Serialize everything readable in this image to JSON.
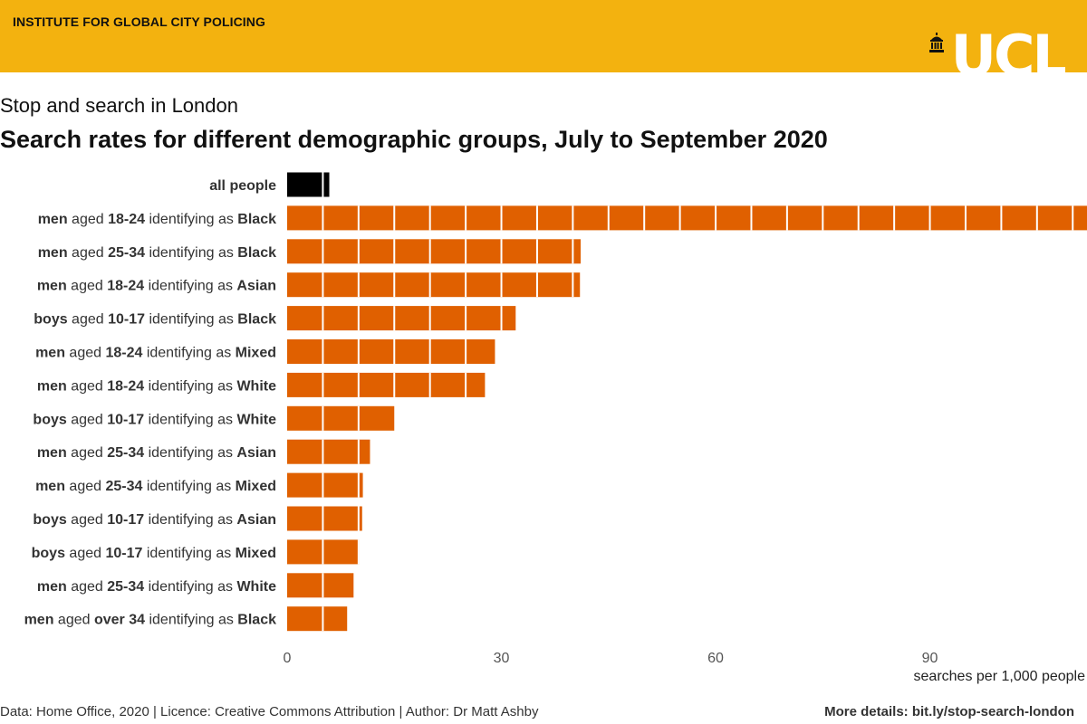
{
  "header": {
    "institute": "INSTITUTE FOR GLOBAL CITY POLICING",
    "logo_text": "UCL",
    "background_color": "#f3b20f"
  },
  "chart_data": {
    "type": "bar",
    "orientation": "horizontal",
    "subtitle": "Stop and search in London",
    "title": "Search rates for different demographic groups, July to September 2020",
    "xlabel": "searches per 1,000 people",
    "xlim": [
      0,
      112
    ],
    "xticks": [
      0,
      30,
      60,
      90
    ],
    "grid": false,
    "categories": [
      {
        "parts": [
          {
            "t": "all people",
            "b": true
          }
        ],
        "value": 5.9,
        "color": "#000000"
      },
      {
        "parts": [
          {
            "t": "men",
            "b": true
          },
          {
            "t": " aged ",
            "b": false
          },
          {
            "t": "18-24",
            "b": true
          },
          {
            "t": " identifying as ",
            "b": false
          },
          {
            "t": "Black",
            "b": true
          }
        ],
        "value": 112,
        "color": "#e06000"
      },
      {
        "parts": [
          {
            "t": "men",
            "b": true
          },
          {
            "t": " aged ",
            "b": false
          },
          {
            "t": "25-34",
            "b": true
          },
          {
            "t": " identifying as ",
            "b": false
          },
          {
            "t": "Black",
            "b": true
          }
        ],
        "value": 41.1,
        "color": "#e06000"
      },
      {
        "parts": [
          {
            "t": "men",
            "b": true
          },
          {
            "t": " aged ",
            "b": false
          },
          {
            "t": "18-24",
            "b": true
          },
          {
            "t": " identifying as ",
            "b": false
          },
          {
            "t": "Asian",
            "b": true
          }
        ],
        "value": 41.0,
        "color": "#e06000"
      },
      {
        "parts": [
          {
            "t": "boys",
            "b": true
          },
          {
            "t": " aged ",
            "b": false
          },
          {
            "t": "10-17",
            "b": true
          },
          {
            "t": " identifying as ",
            "b": false
          },
          {
            "t": "Black",
            "b": true
          }
        ],
        "value": 32.0,
        "color": "#e06000"
      },
      {
        "parts": [
          {
            "t": "men",
            "b": true
          },
          {
            "t": " aged ",
            "b": false
          },
          {
            "t": "18-24",
            "b": true
          },
          {
            "t": " identifying as ",
            "b": false
          },
          {
            "t": "Mixed",
            "b": true
          }
        ],
        "value": 29.1,
        "color": "#e06000"
      },
      {
        "parts": [
          {
            "t": "men",
            "b": true
          },
          {
            "t": " aged ",
            "b": false
          },
          {
            "t": "18-24",
            "b": true
          },
          {
            "t": " identifying as ",
            "b": false
          },
          {
            "t": "White",
            "b": true
          }
        ],
        "value": 27.7,
        "color": "#e06000"
      },
      {
        "parts": [
          {
            "t": "boys",
            "b": true
          },
          {
            "t": " aged ",
            "b": false
          },
          {
            "t": "10-17",
            "b": true
          },
          {
            "t": " identifying as ",
            "b": false
          },
          {
            "t": "White",
            "b": true
          }
        ],
        "value": 15.0,
        "color": "#e06000"
      },
      {
        "parts": [
          {
            "t": "men",
            "b": true
          },
          {
            "t": " aged ",
            "b": false
          },
          {
            "t": "25-34",
            "b": true
          },
          {
            "t": " identifying as ",
            "b": false
          },
          {
            "t": "Asian",
            "b": true
          }
        ],
        "value": 11.6,
        "color": "#e06000"
      },
      {
        "parts": [
          {
            "t": "men",
            "b": true
          },
          {
            "t": " aged ",
            "b": false
          },
          {
            "t": "25-34",
            "b": true
          },
          {
            "t": " identifying as ",
            "b": false
          },
          {
            "t": "Mixed",
            "b": true
          }
        ],
        "value": 10.6,
        "color": "#e06000"
      },
      {
        "parts": [
          {
            "t": "boys",
            "b": true
          },
          {
            "t": " aged ",
            "b": false
          },
          {
            "t": "10-17",
            "b": true
          },
          {
            "t": " identifying as ",
            "b": false
          },
          {
            "t": "Asian",
            "b": true
          }
        ],
        "value": 10.5,
        "color": "#e06000"
      },
      {
        "parts": [
          {
            "t": "boys",
            "b": true
          },
          {
            "t": " aged ",
            "b": false
          },
          {
            "t": "10-17",
            "b": true
          },
          {
            "t": " identifying as ",
            "b": false
          },
          {
            "t": "Mixed",
            "b": true
          }
        ],
        "value": 10.1,
        "color": "#e06000"
      },
      {
        "parts": [
          {
            "t": "men",
            "b": true
          },
          {
            "t": " aged ",
            "b": false
          },
          {
            "t": "25-34",
            "b": true
          },
          {
            "t": " identifying as ",
            "b": false
          },
          {
            "t": "White",
            "b": true
          }
        ],
        "value": 9.3,
        "color": "#e06000"
      },
      {
        "parts": [
          {
            "t": "men",
            "b": true
          },
          {
            "t": " aged ",
            "b": false
          },
          {
            "t": "over 34",
            "b": true
          },
          {
            "t": " identifying as ",
            "b": false
          },
          {
            "t": "Black",
            "b": true
          }
        ],
        "value": 8.4,
        "color": "#e06000"
      }
    ]
  },
  "footer": {
    "credit": "Data: Home Office, 2020 | Licence: Creative Commons Attribution | Author: Dr Matt Ashby",
    "details": "More details: bit.ly/stop-search-london"
  }
}
